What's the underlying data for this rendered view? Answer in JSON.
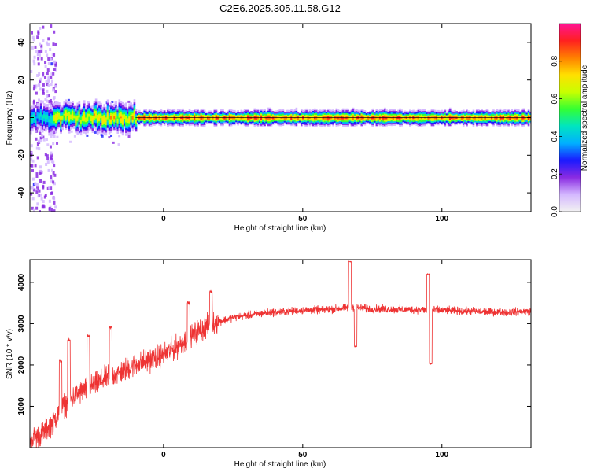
{
  "title": "C2E6.2025.305.11.58.G12",
  "colors": {
    "snr_line": "#ee3333",
    "axis": "#000000",
    "background": "#ffffff"
  },
  "chart_data": [
    {
      "type": "heatmap",
      "xlabel": "Height of straight line (km)",
      "ylabel": "Frequency (Hz)",
      "xlim": [
        -48,
        132
      ],
      "ylim": [
        -50,
        50
      ],
      "x_ticks": [
        0,
        50,
        100
      ],
      "y_ticks": [
        -40,
        -20,
        0,
        20,
        40
      ],
      "grid": false,
      "colorbar": {
        "label": "Normalized spectral amplitude",
        "range": [
          0,
          1
        ],
        "ticks": [
          0.0,
          0.2,
          0.4,
          0.6,
          0.8
        ],
        "tick_labels": [
          "0.0",
          "0.2",
          "0.4",
          "0.6",
          "0.8"
        ],
        "colormap": [
          "#f2f2f2",
          "#d4b8ff",
          "#8a2be2",
          "#1a1aff",
          "#00b0ff",
          "#00e5c0",
          "#33ff33",
          "#c8ff00",
          "#ffe000",
          "#ff8000",
          "#ff2020",
          "#ff1493"
        ]
      },
      "ridge": {
        "frequency_hz": 0,
        "band_segments": [
          {
            "x_start": -48,
            "x_end": -40,
            "peak_amplitude": 0.5
          },
          {
            "x_start": -40,
            "x_end": -10,
            "peak_amplitude": 0.8
          },
          {
            "x_start": -10,
            "x_end": 132,
            "peak_amplitude": 0.95
          }
        ]
      }
    },
    {
      "type": "line",
      "xlabel": "Height of straight line (km)",
      "ylabel": "SNR (10 * v/v)",
      "xlim": [
        -48,
        132
      ],
      "ylim": [
        0,
        4550
      ],
      "x_ticks": [
        0,
        50,
        100
      ],
      "y_ticks": [
        1000,
        2000,
        3000,
        4000
      ],
      "grid": false,
      "series": [
        {
          "trend": {
            "x": [
              -48,
              -44,
              -40,
              -36,
              -32,
              -28,
              -24,
              -20,
              -16,
              -12,
              -8,
              -4,
              0,
              4,
              8,
              12,
              16,
              20,
              25,
              30,
              35,
              40,
              45,
              50,
              55,
              60,
              65,
              68,
              70,
              75,
              80,
              85,
              90,
              95,
              100,
              105,
              110,
              115,
              120,
              125,
              132
            ],
            "y": [
              200,
              300,
              600,
              1000,
              1250,
              1400,
              1550,
              1700,
              1800,
              1950,
              2050,
              2150,
              2250,
              2400,
              2600,
              2800,
              2950,
              3050,
              3150,
              3200,
              3250,
              3280,
              3300,
              3320,
              3330,
              3350,
              3380,
              3400,
              3380,
              3360,
              3350,
              3340,
              3340,
              3330,
              3320,
              3310,
              3300,
              3290,
              3280,
              3280,
              3300
            ]
          },
          "features": [
            {
              "x": -37,
              "y": 2100
            },
            {
              "x": -34,
              "y": 2600
            },
            {
              "x": -27,
              "y": 2700
            },
            {
              "x": -19,
              "y": 2900
            },
            {
              "x": 9,
              "y": 3500
            },
            {
              "x": 17,
              "y": 3780
            },
            {
              "x": 67,
              "y": 4500
            },
            {
              "x": 69,
              "y": 2450
            },
            {
              "x": 95,
              "y": 4200
            },
            {
              "x": 96,
              "y": 2030
            }
          ]
        }
      ]
    }
  ]
}
